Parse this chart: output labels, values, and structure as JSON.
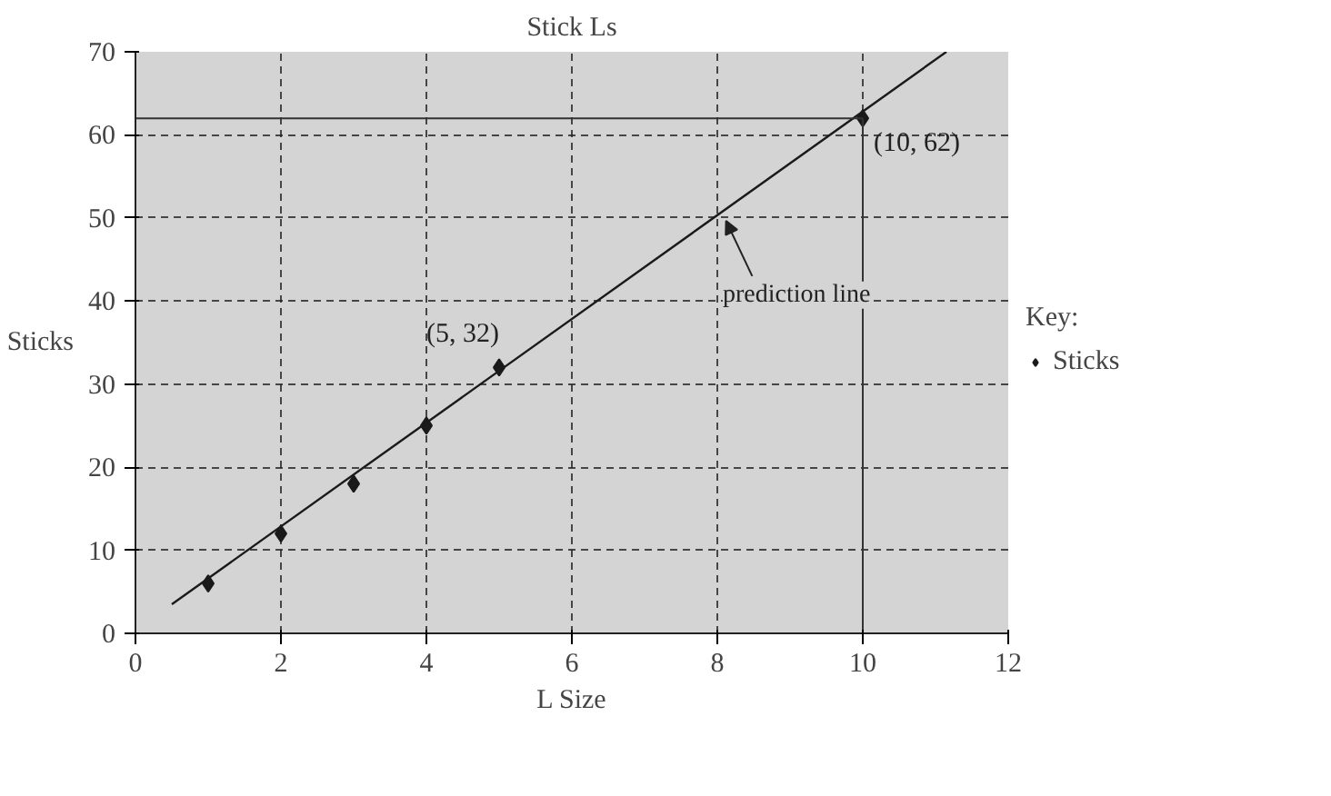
{
  "chart_data": {
    "type": "scatter",
    "title": "Stick Ls",
    "xlabel": "L Size",
    "ylabel": "Sticks",
    "legend_title": "Key:",
    "series": [
      {
        "name": "Sticks",
        "color": "#1a1a1a",
        "x": [
          1,
          2,
          3,
          4,
          5,
          10
        ],
        "values": [
          6,
          12,
          18,
          25,
          32,
          62
        ],
        "marker": "diamond"
      },
      {
        "type": "line",
        "color": "#1a1a1a",
        "x": [
          0.5,
          11.15
        ],
        "values": [
          3.5,
          70
        ]
      }
    ],
    "xlim": [
      0,
      12
    ],
    "ylim": [
      0,
      70
    ],
    "xticks": [
      0,
      2,
      4,
      6,
      8,
      10,
      12
    ],
    "yticks": [
      0,
      10,
      20,
      30,
      40,
      50,
      60,
      70
    ],
    "grid": true,
    "legend": "right",
    "ref_lines": [
      {
        "axis": "y",
        "value": 62,
        "label": null,
        "color": "#333333"
      },
      {
        "axis": "x",
        "value": 10,
        "label": null,
        "color": "#333333"
      }
    ],
    "annotations": [
      {
        "text": "(5, 32)",
        "x": 5,
        "y": 32
      },
      {
        "text": "(10, 62)",
        "x": 10,
        "y": 62
      },
      {
        "text": "prediction line",
        "x": 8,
        "y": 50
      }
    ]
  }
}
